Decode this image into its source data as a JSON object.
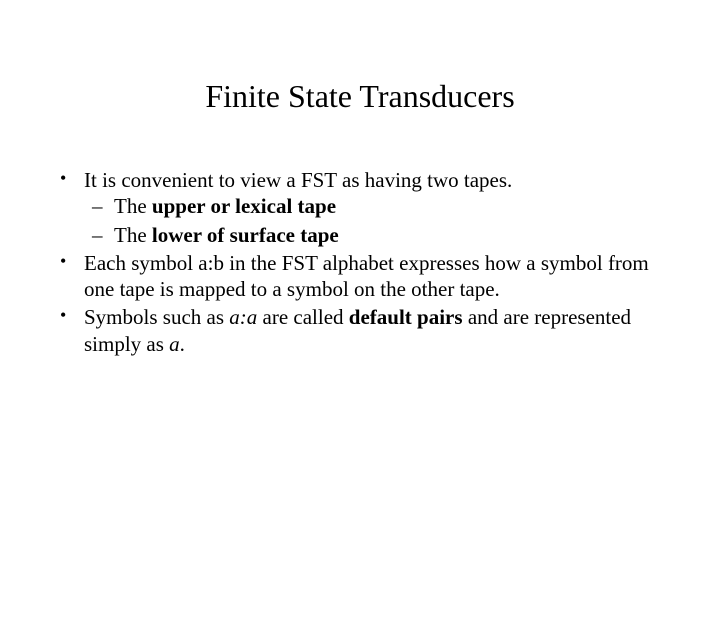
{
  "colors": {
    "background": "#ffffff",
    "text": "#000000"
  },
  "title": "Finite State Transducers",
  "typography": {
    "family": "Times New Roman",
    "title_fontsize": 32,
    "body_fontsize": 21
  },
  "bullets": {
    "b1": "It is convenient to view a FST as having two tapes.",
    "b1a_pre": "The ",
    "b1a_bold": "upper or lexical tape",
    "b1b_pre": "The ",
    "b1b_bold": "lower of surface tape",
    "b2": "Each symbol a:b in the FST alphabet expresses how a symbol from one tape is mapped to a symbol on the other tape.",
    "b3_pre": "Symbols such as ",
    "b3_it1": "a:a",
    "b3_mid": " are called ",
    "b3_bold": "default pairs",
    "b3_mid2": " and are represented simply as ",
    "b3_it2": "a",
    "b3_end": "."
  }
}
